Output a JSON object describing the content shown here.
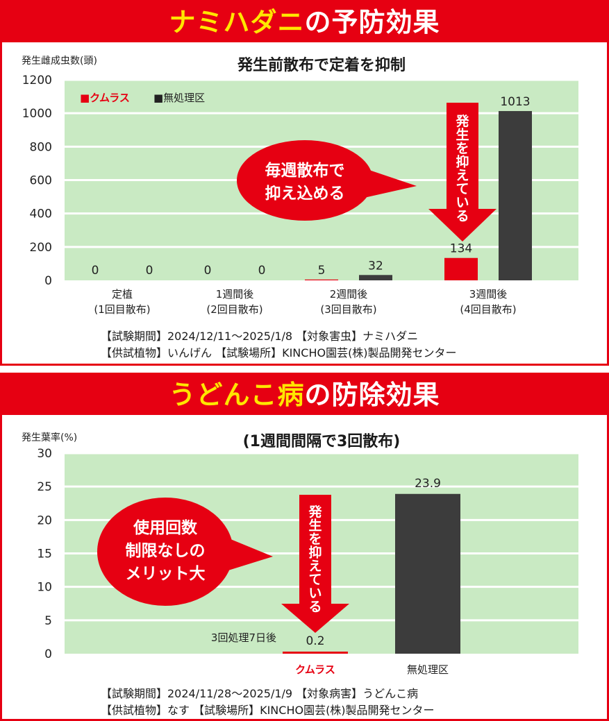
{
  "chart_data": [
    {
      "type": "bar",
      "title": "ナミハダニの予防効果",
      "title_highlight": "ナミハダニ",
      "title_rest": "の予防効果",
      "subtitle": "発生前散布で定着を抑制",
      "ylabel": "発生雌成虫数(頭)",
      "ylim": [
        0,
        1200
      ],
      "yticks": [
        "0",
        "200",
        "400",
        "600",
        "800",
        "1000",
        "1200"
      ],
      "grid": true,
      "legend_position": "top-left",
      "categories": [
        {
          "line1": "定植",
          "line2": "(1回目散布)"
        },
        {
          "line1": "1週間後",
          "line2": "(2回目散布)"
        },
        {
          "line1": "2週間後",
          "line2": "(3回目散布)"
        },
        {
          "line1": "3週間後",
          "line2": "(4回目散布)"
        }
      ],
      "series": [
        {
          "name": "■クムラス",
          "values": [
            0,
            0,
            5,
            134
          ],
          "labels": [
            "0",
            "0",
            "5",
            "134"
          ],
          "color": "#e60012"
        },
        {
          "name": "■無処理区",
          "values": [
            0,
            0,
            32,
            1013
          ],
          "labels": [
            "0",
            "0",
            "32",
            "1013"
          ],
          "color": "#3c3c3c"
        }
      ],
      "annotations": {
        "bubble_line1": "毎週散布で",
        "bubble_line2": "抑え込める",
        "arrow_text": "発生を抑えている"
      },
      "footer": [
        "【試験期間】2024/12/11～2025/1/8 【対象害虫】ナミハダニ",
        "【供試植物】いんげん 【試験場所】KINCHO園芸(株)製品開発センター"
      ]
    },
    {
      "type": "bar",
      "title": "うどんこ病の防除効果",
      "title_highlight": "うどんこ病",
      "title_rest": "の防除効果",
      "subtitle": "(1週間間隔で3回散布)",
      "ylabel": "発生葉率(%)",
      "ylim": [
        0,
        30
      ],
      "yticks": [
        "0",
        "5",
        "10",
        "15",
        "20",
        "25",
        "30"
      ],
      "grid": true,
      "categories": [
        "クムラス",
        "無処理区"
      ],
      "values": [
        0.2,
        23.9
      ],
      "value_labels": [
        "0.2",
        "23.9"
      ],
      "colors": [
        "#e60012",
        "#3c3c3c"
      ],
      "annotations": {
        "bubble_line1": "使用回数",
        "bubble_line2": "制限なしの",
        "bubble_line3": "メリット大",
        "arrow_text": "発生を抑えている",
        "note": "3回処理7日後"
      },
      "footer": [
        "【試験期間】2024/11/28～2025/1/9 【対象病害】うどんこ病",
        "【供試植物】なす 【試験場所】KINCHO園芸(株)製品開発センター"
      ]
    }
  ]
}
